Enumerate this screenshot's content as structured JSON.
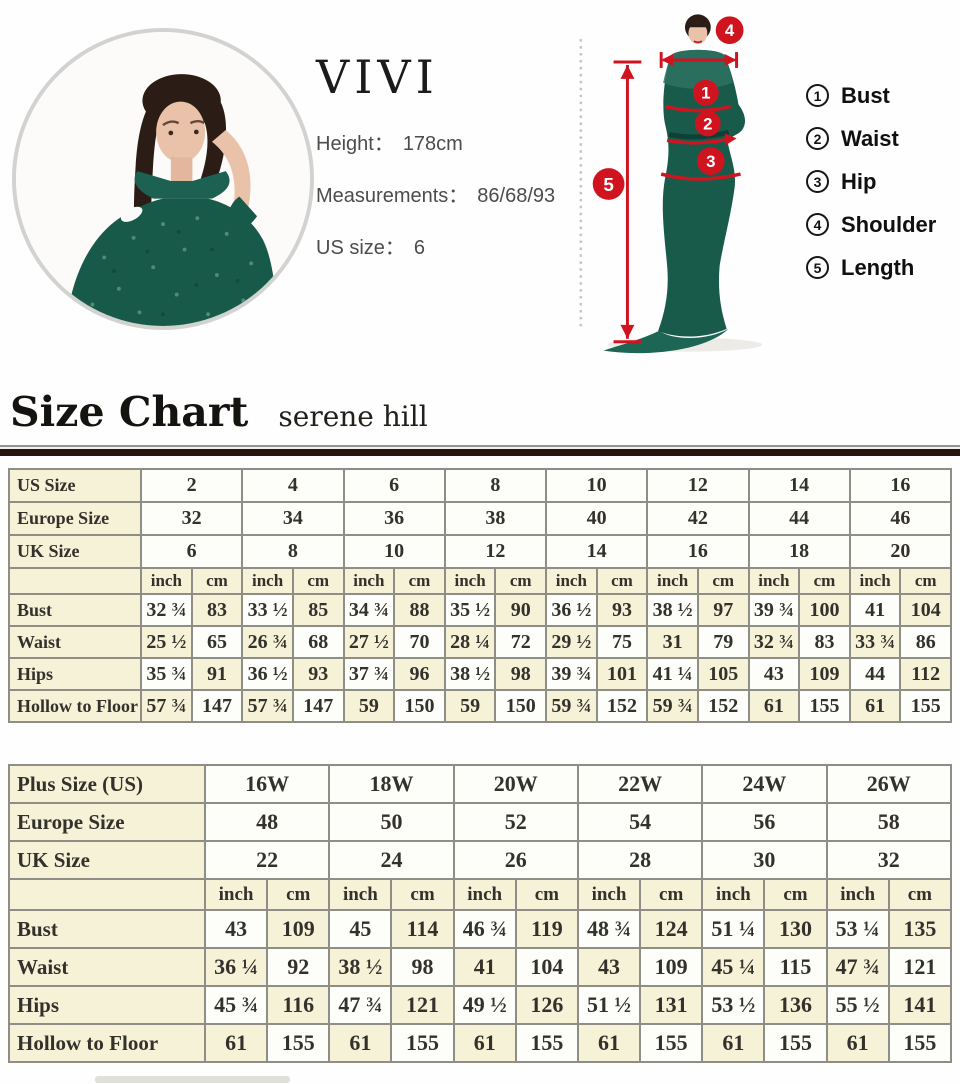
{
  "model": {
    "brand": "VIVI",
    "details": [
      {
        "label": "Height：",
        "value": "178cm"
      },
      {
        "label": "Measurements：",
        "value": "86/68/93"
      },
      {
        "label": "US size：",
        "value": "6"
      }
    ]
  },
  "diagram": {
    "n1": "1",
    "n2": "2",
    "n3": "3",
    "n4": "4",
    "n5": "5"
  },
  "legend": {
    "items": [
      {
        "num": "1",
        "label": "Bust"
      },
      {
        "num": "2",
        "label": "Waist"
      },
      {
        "num": "3",
        "label": "Hip"
      },
      {
        "num": "4",
        "label": "Shoulder"
      },
      {
        "num": "5",
        "label": "Length"
      }
    ]
  },
  "heading": {
    "title": "Size Chart",
    "subtitle": "serene hill"
  },
  "standard_table": {
    "size_rows": [
      {
        "label": "US Size",
        "values": [
          "2",
          "4",
          "6",
          "8",
          "10",
          "12",
          "14",
          "16"
        ]
      },
      {
        "label": "Europe Size",
        "values": [
          "32",
          "34",
          "36",
          "38",
          "40",
          "42",
          "44",
          "46"
        ]
      },
      {
        "label": "UK Size",
        "values": [
          "6",
          "8",
          "10",
          "12",
          "14",
          "16",
          "18",
          "20"
        ]
      }
    ],
    "unit_row": [
      "inch",
      "cm",
      "inch",
      "cm",
      "inch",
      "cm",
      "inch",
      "cm",
      "inch",
      "cm",
      "inch",
      "cm",
      "inch",
      "cm",
      "inch",
      "cm"
    ],
    "measure_rows": [
      {
        "label": "Bust",
        "values": [
          "32 ¾",
          "83",
          "33 ½",
          "85",
          "34 ¾",
          "88",
          "35 ½",
          "90",
          "36 ½",
          "93",
          "38 ½",
          "97",
          "39 ¾",
          "100",
          "41",
          "104"
        ]
      },
      {
        "label": "Waist",
        "values": [
          "25 ½",
          "65",
          "26 ¾",
          "68",
          "27 ½",
          "70",
          "28 ¼",
          "72",
          "29 ½",
          "75",
          "31",
          "79",
          "32 ¾",
          "83",
          "33 ¾",
          "86"
        ]
      },
      {
        "label": "Hips",
        "values": [
          "35 ¾",
          "91",
          "36 ½",
          "93",
          "37 ¾",
          "96",
          "38 ½",
          "98",
          "39 ¾",
          "101",
          "41 ¼",
          "105",
          "43",
          "109",
          "44",
          "112"
        ]
      },
      {
        "label": "Hollow to Floor",
        "values": [
          "57 ¾",
          "147",
          "57 ¾",
          "147",
          "59",
          "150",
          "59",
          "150",
          "59 ¾",
          "152",
          "59 ¾",
          "152",
          "61",
          "155",
          "61",
          "155"
        ]
      }
    ]
  },
  "plus_table": {
    "size_rows": [
      {
        "label": "Plus Size (US)",
        "values": [
          "16W",
          "18W",
          "20W",
          "22W",
          "24W",
          "26W"
        ]
      },
      {
        "label": "Europe Size",
        "values": [
          "48",
          "50",
          "52",
          "54",
          "56",
          "58"
        ]
      },
      {
        "label": "UK Size",
        "values": [
          "22",
          "24",
          "26",
          "28",
          "30",
          "32"
        ]
      }
    ],
    "unit_row": [
      "inch",
      "cm",
      "inch",
      "cm",
      "inch",
      "cm",
      "inch",
      "cm",
      "inch",
      "cm",
      "inch",
      "cm"
    ],
    "measure_rows": [
      {
        "label": "Bust",
        "values": [
          "43",
          "109",
          "45",
          "114",
          "46 ¾",
          "119",
          "48 ¾",
          "124",
          "51 ¼",
          "130",
          "53 ¼",
          "135"
        ]
      },
      {
        "label": "Waist",
        "values": [
          "36 ¼",
          "92",
          "38 ½",
          "98",
          "41",
          "104",
          "43",
          "109",
          "45 ¼",
          "115",
          "47 ¾",
          "121"
        ]
      },
      {
        "label": "Hips",
        "values": [
          "45 ¾",
          "116",
          "47 ¾",
          "121",
          "49 ½",
          "126",
          "51 ½",
          "131",
          "53 ½",
          "136",
          "55 ½",
          "141"
        ]
      },
      {
        "label": "Hollow to Floor",
        "values": [
          "61",
          "155",
          "61",
          "155",
          "61",
          "155",
          "61",
          "155",
          "61",
          "155",
          "61",
          "155"
        ]
      }
    ]
  },
  "colors": {
    "accent_red": "#cf1420",
    "dress_green": "#175a4a",
    "table_cream": "#f6f2d8",
    "divider_brown": "#27160f"
  }
}
